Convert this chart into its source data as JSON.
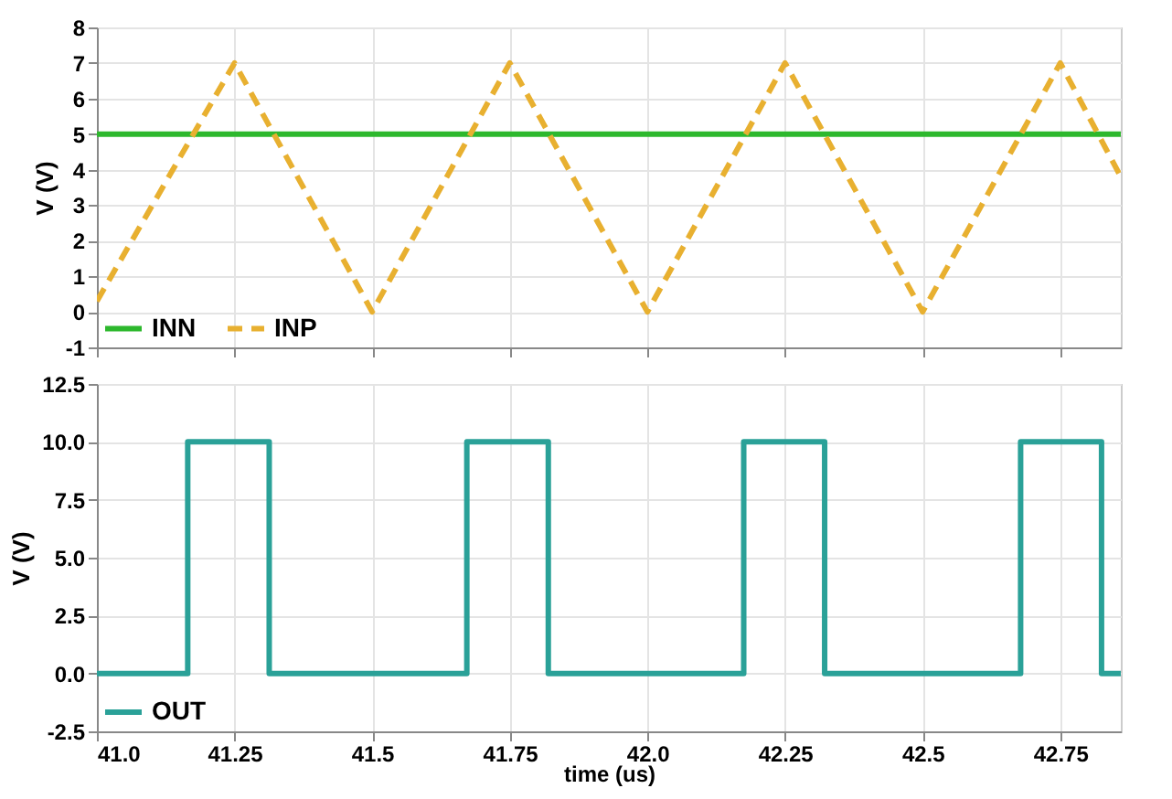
{
  "chart_data": [
    {
      "type": "line",
      "ylabel": "V (V)",
      "xlim": [
        41.0,
        42.86
      ],
      "ylim": [
        -1,
        8
      ],
      "xticks": [
        41,
        41.25,
        41.5,
        41.75,
        42,
        42.25,
        42.5,
        42.75
      ],
      "yticks": [
        -1,
        0,
        1,
        2,
        3,
        4,
        5,
        6,
        7,
        8
      ],
      "tick_labels": "y",
      "grid": true,
      "legend": "bottom left",
      "series": [
        {
          "name": "INN",
          "color": "#2db82d",
          "line_style": "solid",
          "x": [
            41.0,
            42.86
          ],
          "values": [
            5,
            5
          ]
        },
        {
          "name": "INP",
          "color": "#e8b030",
          "line_style": "dashed",
          "x": [
            41.0,
            41.25,
            41.5,
            41.75,
            42.0,
            42.25,
            42.5,
            42.75,
            42.86
          ],
          "values": [
            0.3,
            7,
            0,
            7,
            0,
            7,
            0,
            7,
            3.8
          ]
        }
      ]
    },
    {
      "type": "line",
      "xlabel": "time (us)",
      "ylabel": "V (V)",
      "xlim": [
        41.0,
        42.86
      ],
      "ylim": [
        -2.5,
        12.5
      ],
      "xticks": [
        {
          "value": 41,
          "label": "41.0"
        },
        41.25,
        41.5,
        41.75,
        {
          "value": 42,
          "label": "42.0"
        },
        42.25,
        42.5,
        42.75
      ],
      "yticks": [
        -2.5,
        {
          "value": 0,
          "label": "0.0"
        },
        2.5,
        {
          "value": 5,
          "label": "5.0"
        },
        7.5,
        {
          "value": 10,
          "label": "10.0"
        },
        12.5
      ],
      "grid": true,
      "legend": "bottom left",
      "series": [
        {
          "name": "OUT",
          "color": "#2aa198",
          "line_style": "solid",
          "x": [
            41.0,
            41.165,
            41.165,
            41.313,
            41.313,
            41.672,
            41.672,
            41.82,
            41.82,
            42.175,
            42.175,
            42.322,
            42.322,
            42.678,
            42.678,
            42.825,
            42.825,
            42.86
          ],
          "values": [
            0,
            0,
            10,
            10,
            0,
            0,
            10,
            10,
            0,
            0,
            10,
            10,
            0,
            0,
            10,
            10,
            0,
            0
          ]
        }
      ]
    }
  ]
}
